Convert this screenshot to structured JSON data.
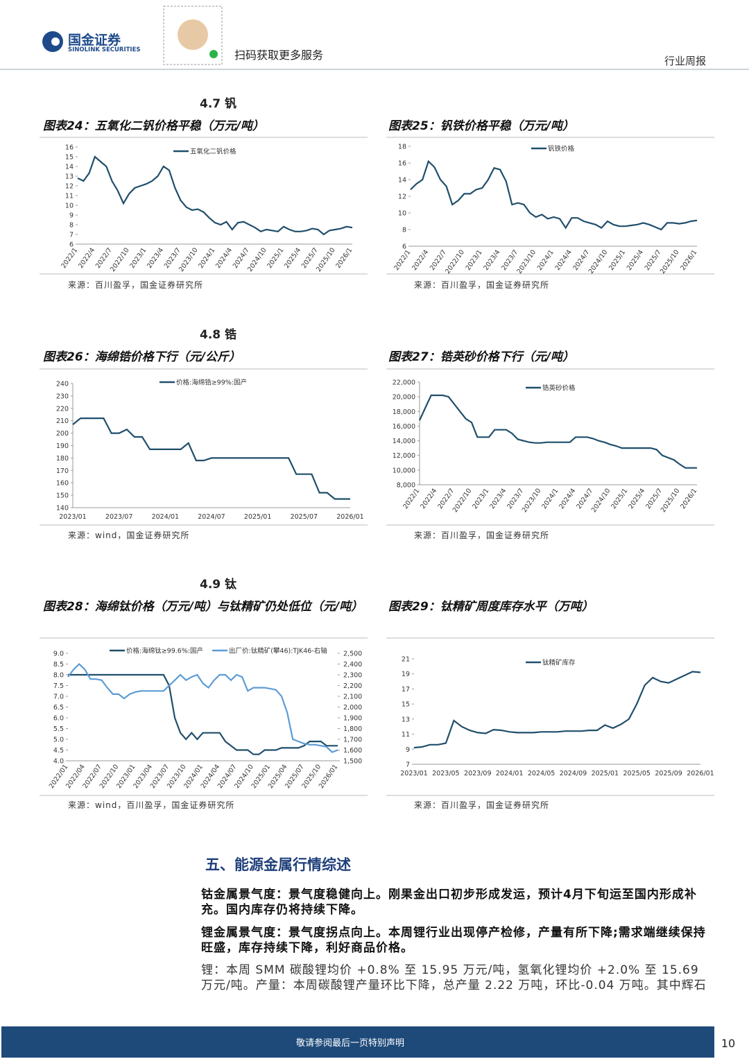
{
  "header": {
    "logo_cn": "国金证券",
    "logo_en": "SINOLINK SECURITIES",
    "qr_caption": "扫码获取更多服务",
    "report_type": "行业周报"
  },
  "sections": [
    "4.7 钒",
    "4.8 锆",
    "4.9 钛"
  ],
  "chart_data": [
    {
      "type": "line",
      "title": "图表24：五氧化二钒价格平稳（万元/吨）",
      "source": "来源：百川盈孚，国金证券研究所",
      "x": [
        "2022/1",
        "2022/2",
        "2022/3",
        "2022/4",
        "2022/5",
        "2022/6",
        "2022/7",
        "2022/8",
        "2022/9",
        "2022/10",
        "2022/11",
        "2022/12",
        "2023/1",
        "2023/2",
        "2023/3",
        "2023/4",
        "2023/5",
        "2023/6",
        "2023/7",
        "2023/8",
        "2023/9",
        "2023/10",
        "2023/11",
        "2023/12",
        "2024/1",
        "2024/2",
        "2024/3",
        "2024/4",
        "2024/5",
        "2024/6",
        "2024/7",
        "2024/8",
        "2024/9",
        "2024/10",
        "2024/11",
        "2024/12",
        "2025/1",
        "2025/2",
        "2025/3",
        "2025/4",
        "2025/5",
        "2025/6",
        "2025/7",
        "2025/8",
        "2025/9",
        "2025/10",
        "2025/11",
        "2025/12",
        "2026/1"
      ],
      "series": [
        {
          "name": "五氧化二钒价格",
          "color": "#1f4e6b",
          "values": [
            12.8,
            12.5,
            13.3,
            15.0,
            14.5,
            14.0,
            12.5,
            11.5,
            10.2,
            11.2,
            11.8,
            12.0,
            12.2,
            12.5,
            13.0,
            14.0,
            13.6,
            11.8,
            10.5,
            9.8,
            9.5,
            9.6,
            9.3,
            8.7,
            8.2,
            8.0,
            8.3,
            7.5,
            8.2,
            8.3,
            8.0,
            7.7,
            7.3,
            7.5,
            7.4,
            7.3,
            7.8,
            7.5,
            7.3,
            7.3,
            7.4,
            7.6,
            7.5,
            7.0,
            7.4,
            7.5,
            7.6,
            7.8,
            7.7
          ]
        }
      ],
      "xticks": [
        "2022/1",
        "2022/4",
        "2022/7",
        "2022/10",
        "2023/1",
        "2023/4",
        "2023/7",
        "2023/10",
        "2024/1",
        "2024/4",
        "2024/7",
        "2024/10",
        "2025/1",
        "2025/4",
        "2025/7",
        "2025/10",
        "2026/1"
      ],
      "ylim": [
        6,
        16
      ],
      "yticks": [
        6,
        7,
        8,
        9,
        10,
        11,
        12,
        13,
        14,
        15,
        16
      ]
    },
    {
      "type": "line",
      "title": "图表25：钒铁价格平稳（万元/吨）",
      "source": "来源：百川盈孚，国金证券研究所",
      "x": [
        "2022/1",
        "2022/2",
        "2022/3",
        "2022/4",
        "2022/5",
        "2022/6",
        "2022/7",
        "2022/8",
        "2022/9",
        "2022/10",
        "2022/11",
        "2022/12",
        "2023/1",
        "2023/2",
        "2023/3",
        "2023/4",
        "2023/5",
        "2023/6",
        "2023/7",
        "2023/8",
        "2023/9",
        "2023/10",
        "2023/11",
        "2023/12",
        "2024/1",
        "2024/2",
        "2024/3",
        "2024/4",
        "2024/5",
        "2024/6",
        "2024/7",
        "2024/8",
        "2024/9",
        "2024/10",
        "2024/11",
        "2024/12",
        "2025/1",
        "2025/2",
        "2025/3",
        "2025/4",
        "2025/5",
        "2025/6",
        "2025/7",
        "2025/8",
        "2025/9",
        "2025/10",
        "2025/11",
        "2025/12",
        "2026/1"
      ],
      "series": [
        {
          "name": "钒铁价格",
          "color": "#1f4e6b",
          "values": [
            12.8,
            13.5,
            14.0,
            16.2,
            15.5,
            14.0,
            13.2,
            11.0,
            11.5,
            12.3,
            12.3,
            12.8,
            13.0,
            14.0,
            15.4,
            15.2,
            13.8,
            11.0,
            11.2,
            11.0,
            10.0,
            9.5,
            9.8,
            9.3,
            9.5,
            9.3,
            8.2,
            9.4,
            9.4,
            9.0,
            8.8,
            8.6,
            8.2,
            9.0,
            8.6,
            8.4,
            8.4,
            8.5,
            8.6,
            8.8,
            8.6,
            8.3,
            8.0,
            8.8,
            8.8,
            8.7,
            8.8,
            9.0,
            9.1
          ]
        }
      ],
      "xticks": [
        "2022/1",
        "2022/4",
        "2022/7",
        "2022/10",
        "2023/1",
        "2023/4",
        "2023/7",
        "2023/10",
        "2024/1",
        "2024/4",
        "2024/7",
        "2024/10",
        "2025/1",
        "2025/4",
        "2025/7",
        "2025/10",
        "2026/1"
      ],
      "ylim": [
        6,
        18
      ],
      "yticks": [
        6,
        8,
        10,
        12,
        14,
        16,
        18
      ]
    },
    {
      "type": "line",
      "title": "图表26：海绵锆价格下行（元/公斤）",
      "source": "来源：wind，国金证券研究所",
      "x": [
        "2023/01",
        "2023/02",
        "2023/03",
        "2023/04",
        "2023/05",
        "2023/06",
        "2023/07",
        "2023/08",
        "2023/09",
        "2023/10",
        "2023/11",
        "2023/12",
        "2024/01",
        "2024/02",
        "2024/03",
        "2024/04",
        "2024/05",
        "2024/06",
        "2024/07",
        "2024/08",
        "2024/09",
        "2024/10",
        "2024/11",
        "2024/12",
        "2025/01",
        "2025/02",
        "2025/03",
        "2025/04",
        "2025/05",
        "2025/06",
        "2025/07",
        "2025/08",
        "2025/09",
        "2025/10",
        "2025/11",
        "2025/12",
        "2026/01"
      ],
      "series": [
        {
          "name": "价格:海绵锆≥99%:国产",
          "color": "#1f4e6b",
          "values": [
            207,
            212,
            212,
            212,
            212,
            200,
            200,
            203,
            197,
            197,
            187,
            187,
            187,
            187,
            187,
            192,
            178,
            178,
            180,
            180,
            180,
            180,
            180,
            180,
            180,
            180,
            180,
            180,
            180,
            167,
            167,
            167,
            152,
            152,
            147,
            147,
            147
          ]
        }
      ],
      "xticks": [
        "2023/01",
        "2023/07",
        "2024/01",
        "2024/07",
        "2025/01",
        "2025/07",
        "2026/01"
      ],
      "ylim": [
        140,
        240
      ],
      "yticks": [
        140,
        150,
        160,
        170,
        180,
        190,
        200,
        210,
        220,
        230,
        240
      ]
    },
    {
      "type": "line",
      "title": "图表27：锆英砂价格下行（元/吨）",
      "source": "来源：百川盈孚，国金证券研究所",
      "x": [
        "2022/1",
        "2022/2",
        "2022/3",
        "2022/4",
        "2022/5",
        "2022/6",
        "2022/7",
        "2022/8",
        "2022/9",
        "2022/10",
        "2022/11",
        "2022/12",
        "2023/1",
        "2023/2",
        "2023/3",
        "2023/4",
        "2023/5",
        "2023/6",
        "2023/7",
        "2023/8",
        "2023/9",
        "2023/10",
        "2023/11",
        "2023/12",
        "2024/1",
        "2024/2",
        "2024/3",
        "2024/4",
        "2024/5",
        "2024/6",
        "2024/7",
        "2024/8",
        "2024/9",
        "2024/10",
        "2024/11",
        "2024/12",
        "2025/1",
        "2025/2",
        "2025/3",
        "2025/4",
        "2025/5",
        "2025/6",
        "2025/7",
        "2025/8",
        "2025/9",
        "2025/10",
        "2025/11",
        "2025/12",
        "2026/1"
      ],
      "series": [
        {
          "name": "锆英砂价格",
          "color": "#1f4e6b",
          "values": [
            16800,
            18500,
            20200,
            20200,
            20200,
            20000,
            19000,
            18000,
            17000,
            16500,
            14500,
            14500,
            14500,
            15500,
            15500,
            15500,
            15000,
            14200,
            14000,
            13800,
            13700,
            13700,
            13800,
            13800,
            13800,
            13800,
            13800,
            14500,
            14500,
            14500,
            14300,
            14000,
            13800,
            13500,
            13300,
            13000,
            13000,
            13000,
            13000,
            13000,
            13000,
            12800,
            12000,
            11700,
            11400,
            10800,
            10300,
            10300,
            10300
          ]
        }
      ],
      "xticks": [
        "2022/1",
        "2022/4",
        "2022/7",
        "2022/10",
        "2023/1",
        "2023/4",
        "2023/7",
        "2023/10",
        "2024/1",
        "2024/4",
        "2024/7",
        "2024/10",
        "2025/1",
        "2025/4",
        "2025/7",
        "2025/10",
        "2026/1"
      ],
      "ylim": [
        8000,
        22000
      ],
      "yticks": [
        {
          "value": 8000,
          "label": "8,000"
        },
        {
          "value": 10000,
          "label": "10,000"
        },
        {
          "value": 12000,
          "label": "12,000"
        },
        {
          "value": 14000,
          "label": "14,000"
        },
        {
          "value": 16000,
          "label": "16,000"
        },
        {
          "value": 18000,
          "label": "18,000"
        },
        {
          "value": 20000,
          "label": "20,000"
        },
        {
          "value": 22000,
          "label": "22,000"
        }
      ]
    },
    {
      "type": "line",
      "title": "图表28：海绵钛价格（万元/吨）与钛精矿仍处低位（元/吨）",
      "source": "来源：wind，百川盈孚，国金证券研究所",
      "x": [
        "2022/01",
        "2022/02",
        "2022/03",
        "2022/04",
        "2022/05",
        "2022/06",
        "2022/07",
        "2022/08",
        "2022/09",
        "2022/10",
        "2022/11",
        "2022/12",
        "2023/01",
        "2023/02",
        "2023/03",
        "2023/04",
        "2023/05",
        "2023/06",
        "2023/07",
        "2023/08",
        "2023/09",
        "2023/10",
        "2023/11",
        "2023/12",
        "2024/01",
        "2024/02",
        "2024/03",
        "2024/04",
        "2024/05",
        "2024/06",
        "2024/07",
        "2024/08",
        "2024/09",
        "2024/10",
        "2024/11",
        "2024/12",
        "2025/01",
        "2025/02",
        "2025/03",
        "2025/04",
        "2025/05",
        "2025/06",
        "2025/07",
        "2025/08",
        "2025/09",
        "2025/10",
        "2025/11",
        "2025/12",
        "2026/01"
      ],
      "series": [
        {
          "name": "价格:海绵钛≥99.6%:国产",
          "color": "#1f4e6b",
          "values": [
            8.0,
            8.0,
            8.0,
            8.0,
            8.0,
            8.0,
            8.0,
            8.0,
            8.0,
            8.0,
            8.0,
            8.0,
            8.0,
            8.0,
            8.0,
            8.0,
            8.0,
            8.0,
            7.5,
            6.0,
            5.3,
            5.0,
            5.3,
            5.0,
            5.3,
            5.3,
            5.3,
            5.3,
            4.9,
            4.7,
            4.5,
            4.5,
            4.5,
            4.3,
            4.3,
            4.5,
            4.5,
            4.5,
            4.6,
            4.6,
            4.6,
            4.6,
            4.7,
            4.9,
            4.9,
            4.9,
            4.7,
            4.7,
            4.7
          ]
        },
        {
          "name": "出厂价:钛精矿(攀46):TJK46-右轴",
          "color": "#5b9bd5",
          "axis": "y2",
          "values": [
            2280,
            2350,
            2400,
            2350,
            2260,
            2260,
            2250,
            2180,
            2120,
            2120,
            2080,
            2120,
            2140,
            2150,
            2150,
            2150,
            2150,
            2150,
            2200,
            2250,
            2300,
            2250,
            2280,
            2300,
            2220,
            2180,
            2250,
            2300,
            2300,
            2250,
            2300,
            2280,
            2150,
            2180,
            2180,
            2180,
            2170,
            2160,
            2100,
            1950,
            1700,
            1680,
            1660,
            1650,
            1650,
            1640,
            1630,
            1580,
            1600
          ]
        }
      ],
      "xticks": [
        "2022/01",
        "2022/04",
        "2022/07",
        "2022/10",
        "2023/01",
        "2023/04",
        "2023/07",
        "2023/10",
        "2024/01",
        "2024/04",
        "2024/07",
        "2024/10",
        "2025/01",
        "2025/04",
        "2025/07",
        "2025/10",
        "2026/01"
      ],
      "ylim": [
        4,
        9
      ],
      "yticks": [
        {
          "value": 4,
          "label": "4.0"
        },
        4.5,
        {
          "value": 5,
          "label": "5.0"
        },
        5.5,
        {
          "value": 6,
          "label": "6.0"
        },
        6.5,
        {
          "value": 7,
          "label": "7.0"
        },
        7.5,
        {
          "value": 8,
          "label": "8.0"
        },
        8.5,
        {
          "value": 9,
          "label": "9.0"
        }
      ],
      "y2lim": [
        1500,
        2500
      ],
      "y2ticks": [
        {
          "value": 1500,
          "label": "1,500"
        },
        {
          "value": 1600,
          "label": "1,600"
        },
        {
          "value": 1700,
          "label": "1,700"
        },
        {
          "value": 1800,
          "label": "1,800"
        },
        {
          "value": 1900,
          "label": "1,900"
        },
        {
          "value": 2000,
          "label": "2,000"
        },
        {
          "value": 2100,
          "label": "2,100"
        },
        {
          "value": 2200,
          "label": "2,200"
        },
        {
          "value": 2300,
          "label": "2,300"
        },
        {
          "value": 2400,
          "label": "2,400"
        },
        {
          "value": 2500,
          "label": "2,500"
        }
      ]
    },
    {
      "type": "line",
      "title": "图表29：钛精矿周度库存水平（万吨）",
      "source": "来源：百川盈孚，国金证券研究所",
      "x": [
        "2023/01",
        "2023/02",
        "2023/03",
        "2023/04",
        "2023/05",
        "2023/06",
        "2023/07",
        "2023/08",
        "2023/09",
        "2023/10",
        "2023/11",
        "2023/12",
        "2024/01",
        "2024/02",
        "2024/03",
        "2024/04",
        "2024/05",
        "2024/06",
        "2024/07",
        "2024/08",
        "2024/09",
        "2024/10",
        "2024/11",
        "2024/12",
        "2025/01",
        "2025/02",
        "2025/03",
        "2025/04",
        "2025/05",
        "2025/06",
        "2025/07",
        "2025/08",
        "2025/09",
        "2025/10",
        "2025/11",
        "2025/12",
        "2026/01"
      ],
      "series": [
        {
          "name": "钛精矿库存",
          "color": "#1f4e6b",
          "values": [
            9.2,
            9.3,
            9.6,
            9.6,
            9.8,
            12.8,
            12.0,
            11.5,
            11.2,
            11.1,
            11.6,
            11.5,
            11.3,
            11.2,
            11.2,
            11.2,
            11.3,
            11.3,
            11.3,
            11.4,
            11.4,
            11.4,
            11.5,
            11.5,
            12.2,
            11.8,
            12.3,
            13.0,
            15.0,
            17.5,
            18.5,
            18.0,
            17.8,
            18.3,
            18.8,
            19.3,
            19.2
          ]
        }
      ],
      "xticks": [
        "2023/01",
        "2023/05",
        "2023/09",
        "2024/01",
        "2024/05",
        "2024/09",
        "2025/01",
        "2025/05",
        "2025/09",
        "2026/01"
      ],
      "ylim": [
        7,
        21
      ],
      "yticks": [
        7,
        9,
        11,
        13,
        15,
        17,
        19,
        21
      ]
    }
  ],
  "section_5": {
    "heading": "五、能源金属行情综述",
    "paragraphs": [
      "钴金属景气度：景气度稳健向上。刚果金出口初步形成发运，预计4月下旬运至国内形成补充。国内库存仍将持续下降。",
      "锂金属景气度：景气度拐点向上。本周锂行业出现停产检修，产量有所下降;需求端继续保持旺盛，库存持续下降，利好商品价格。",
      "锂：本周 SMM 碳酸锂均价 +0.8% 至 15.95 万元/吨，氢氧化锂均价 +2.0% 至 15.69 万元/吨。产量：本周碳酸锂产量环比下降，总产量 2.22 万吨，环比-0.04 万吨。其中辉石"
    ]
  },
  "footer": {
    "notice": "敬请参阅最后一页特别声明",
    "page": "10"
  }
}
